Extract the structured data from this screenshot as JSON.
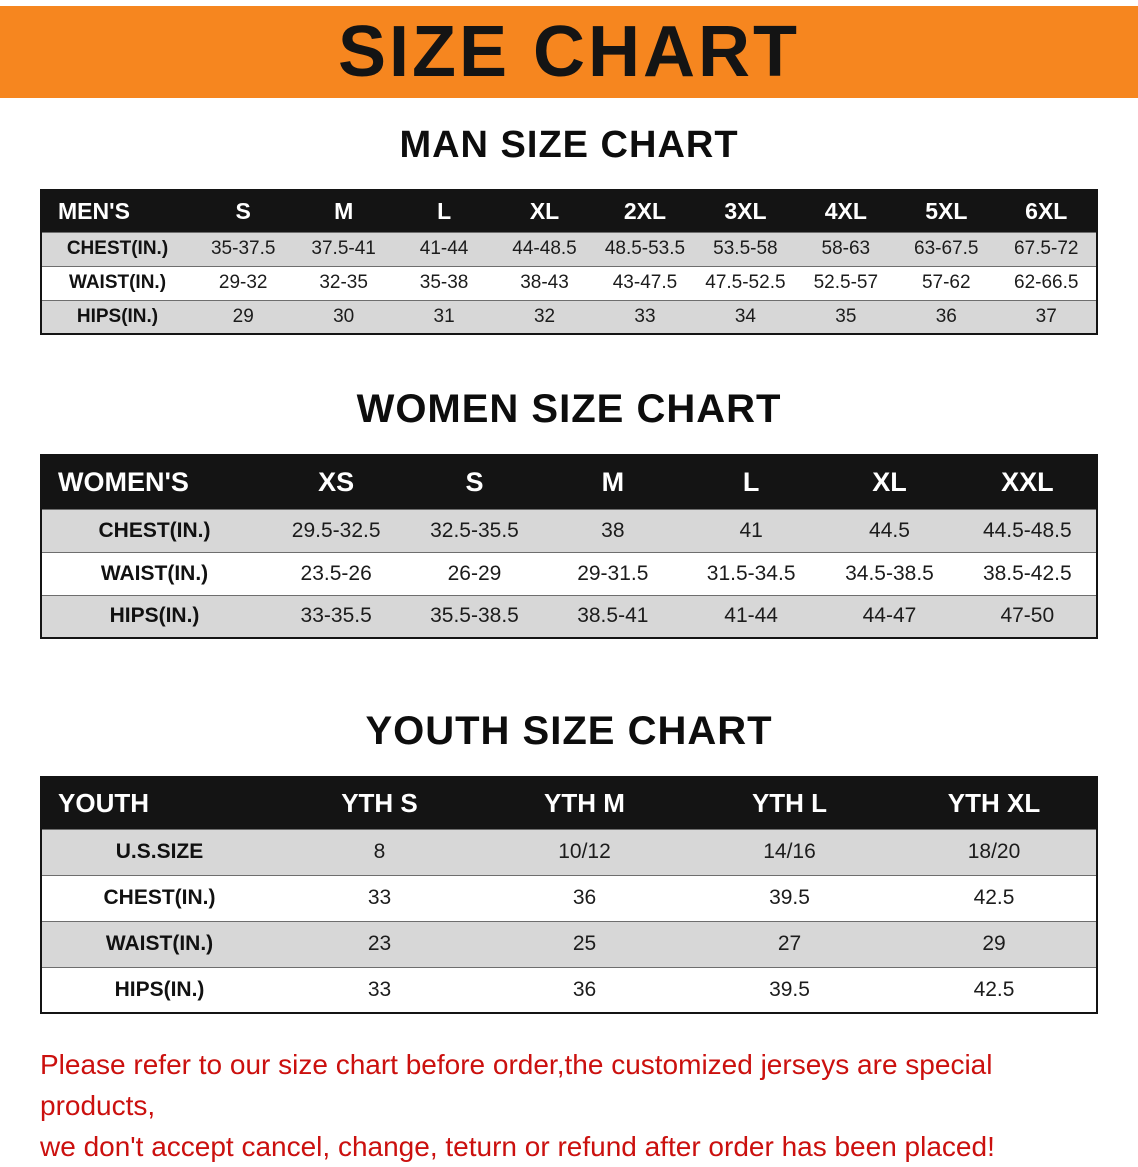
{
  "banner": {
    "title": "SIZE CHART"
  },
  "colors": {
    "banner_orange": "#f6861f",
    "header_black": "#141414",
    "row_gray": "#d7d7d7",
    "disclaimer_red": "#cb100e"
  },
  "men": {
    "heading": "MAN SIZE CHART",
    "header_label": "MEN'S",
    "columns": [
      "S",
      "M",
      "L",
      "XL",
      "2XL",
      "3XL",
      "4XL",
      "5XL",
      "6XL"
    ],
    "rows": [
      {
        "label": "CHEST(IN.)",
        "values": [
          "35-37.5",
          "37.5-41",
          "41-44",
          "44-48.5",
          "48.5-53.5",
          "53.5-58",
          "58-63",
          "63-67.5",
          "67.5-72"
        ]
      },
      {
        "label": "WAIST(IN.)",
        "values": [
          "29-32",
          "32-35",
          "35-38",
          "38-43",
          "43-47.5",
          "47.5-52.5",
          "52.5-57",
          "57-62",
          "62-66.5"
        ]
      },
      {
        "label": "HIPS(IN.)",
        "values": [
          "29",
          "30",
          "31",
          "32",
          "33",
          "34",
          "35",
          "36",
          "37"
        ]
      }
    ]
  },
  "women": {
    "heading": "WOMEN SIZE CHART",
    "header_label": "WOMEN'S",
    "columns": [
      "XS",
      "S",
      "M",
      "L",
      "XL",
      "XXL"
    ],
    "rows": [
      {
        "label": "CHEST(IN.)",
        "values": [
          "29.5-32.5",
          "32.5-35.5",
          "38",
          "41",
          "44.5",
          "44.5-48.5"
        ]
      },
      {
        "label": "WAIST(IN.)",
        "values": [
          "23.5-26",
          "26-29",
          "29-31.5",
          "31.5-34.5",
          "34.5-38.5",
          "38.5-42.5"
        ]
      },
      {
        "label": "HIPS(IN.)",
        "values": [
          "33-35.5",
          "35.5-38.5",
          "38.5-41",
          "41-44",
          "44-47",
          "47-50"
        ]
      }
    ]
  },
  "youth": {
    "heading": "YOUTH SIZE CHART",
    "header_label": "YOUTH",
    "columns": [
      "YTH S",
      "YTH M",
      "YTH L",
      "YTH XL"
    ],
    "rows": [
      {
        "label": "U.S.SIZE",
        "values": [
          "8",
          "10/12",
          "14/16",
          "18/20"
        ]
      },
      {
        "label": "CHEST(IN.)",
        "values": [
          "33",
          "36",
          "39.5",
          "42.5"
        ]
      },
      {
        "label": "WAIST(IN.)",
        "values": [
          "23",
          "25",
          "27",
          "29"
        ]
      },
      {
        "label": "HIPS(IN.)",
        "values": [
          "33",
          "36",
          "39.5",
          "42.5"
        ]
      }
    ]
  },
  "disclaimer": {
    "line1": "Please refer to our size chart before order,the customized jerseys are special products,",
    "line2": "we don't accept cancel, change, teturn or refund after order has been placed!"
  }
}
